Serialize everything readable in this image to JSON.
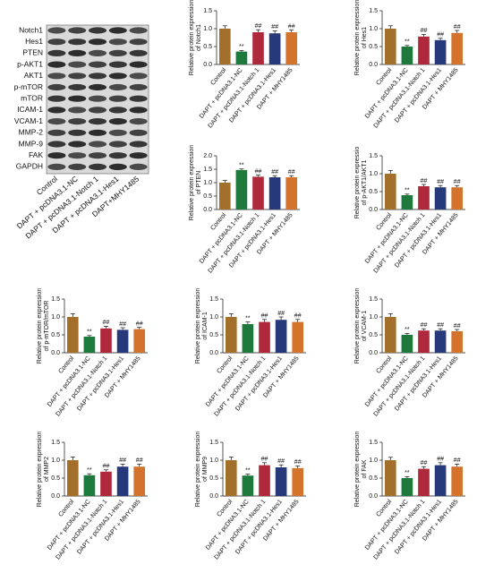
{
  "blot": {
    "proteins": [
      "Notch1",
      "Hes1",
      "PTEN",
      "p-AKT1",
      "AKT1",
      "p-mTOR",
      "mTOR",
      "ICAM-1",
      "VCAM-1",
      "MMP-2",
      "MMP-9",
      "FAK",
      "GAPDH"
    ],
    "lanes": [
      "Control",
      "DAPT + pcDNA3.1-NC",
      "DAPT + pcDNA3.1-Notch 1",
      "DAPT + pcDNA3.1-Hes1",
      "DAPT+MHY1485"
    ]
  },
  "chart_data": [
    {
      "type": "bar",
      "ylabel": [
        "Relative protein expression",
        "of Notch1"
      ],
      "categories": [
        "Control",
        "DAPT + pcDNA3.1-NC",
        "DAPT + pcDNA3.1-Notch 1",
        "DAPT + pcDNA3.1-Hes1",
        "DAPT + MHY1485"
      ],
      "values": [
        1.0,
        0.36,
        0.9,
        0.87,
        0.9
      ],
      "errors": [
        0.08,
        0.03,
        0.07,
        0.07,
        0.06
      ],
      "annotations": [
        null,
        "**",
        "##",
        "##",
        "##"
      ],
      "colors": [
        "#a3702c",
        "#1d7a3c",
        "#b0283c",
        "#27397a",
        "#d4732c"
      ],
      "ylim": [
        0,
        1.5
      ],
      "yticks": [
        {
          "value": 0,
          "label": "0.0"
        },
        {
          "value": 0.5,
          "label": "0.5"
        },
        {
          "value": 1,
          "label": "1.0"
        },
        {
          "value": 1.5,
          "label": "1.5"
        }
      ]
    },
    {
      "type": "bar",
      "ylabel": [
        "Relative protein expression",
        "of Hes1"
      ],
      "categories": [
        "Control",
        "DAPT + pcDNA3.1-NC",
        "DAPT + pcDNA3.1-Notch 1",
        "DAPT + pcDNA3.1-Hes1",
        "DAPT + MHY1485"
      ],
      "values": [
        1.0,
        0.5,
        0.78,
        0.68,
        0.88
      ],
      "errors": [
        0.08,
        0.03,
        0.06,
        0.05,
        0.07
      ],
      "annotations": [
        null,
        "**",
        "##",
        "##",
        "##"
      ],
      "colors": [
        "#a3702c",
        "#1d7a3c",
        "#b0283c",
        "#27397a",
        "#d4732c"
      ],
      "ylim": [
        0,
        1.5
      ],
      "yticks": [
        {
          "value": 0,
          "label": "0.0"
        },
        {
          "value": 0.5,
          "label": "0.5"
        },
        {
          "value": 1,
          "label": "1.0"
        },
        {
          "value": 1.5,
          "label": "1.5"
        }
      ]
    },
    {
      "type": "bar",
      "ylabel": [
        "Relative protein expression",
        "of PTEN"
      ],
      "categories": [
        "Control",
        "DAPT + pcDNA3.1-NC",
        "DAPT + pcDNA3.1-Notch 1",
        "DAPT + pcDNA3.1-Hes1",
        "DAPT + MHY1485"
      ],
      "values": [
        1.0,
        1.47,
        1.22,
        1.2,
        1.2
      ],
      "errors": [
        0.08,
        0.04,
        0.06,
        0.06,
        0.06
      ],
      "annotations": [
        null,
        "**",
        "##",
        "##",
        "##"
      ],
      "colors": [
        "#a3702c",
        "#1d7a3c",
        "#b0283c",
        "#27397a",
        "#d4732c"
      ],
      "ylim": [
        0,
        2
      ],
      "yticks": [
        {
          "value": 0,
          "label": "0.0"
        },
        {
          "value": 0.5,
          "label": "0.5"
        },
        {
          "value": 1,
          "label": "1.0"
        },
        {
          "value": 1.5,
          "label": "1.5"
        },
        {
          "value": 2,
          "label": "2.0"
        }
      ]
    },
    {
      "type": "bar",
      "ylabel": [
        "Relative protein expressio",
        "of p-AKT1/AKT1"
      ],
      "categories": [
        "Control",
        "DAPT + pcDNA3.1-NC",
        "DAPT + pcDNA3.1-Notch 1",
        "DAPT + pcDNA3.1-Hes1",
        "DAPT + MHY1485"
      ],
      "values": [
        1.0,
        0.4,
        0.65,
        0.62,
        0.62
      ],
      "errors": [
        0.09,
        0.03,
        0.05,
        0.05,
        0.05
      ],
      "annotations": [
        null,
        "**",
        "##",
        "##",
        "##"
      ],
      "colors": [
        "#a3702c",
        "#1d7a3c",
        "#b0283c",
        "#27397a",
        "#d4732c"
      ],
      "ylim": [
        0,
        1.5
      ],
      "yticks": [
        {
          "value": 0,
          "label": "0.0"
        },
        {
          "value": 0.5,
          "label": "0.5"
        },
        {
          "value": 1,
          "label": "1.0"
        },
        {
          "value": 1.5,
          "label": "1.5"
        }
      ]
    },
    {
      "type": "bar",
      "ylabel": [
        "Relative protein expression",
        "of p-mTOR/mTOR"
      ],
      "categories": [
        "Control",
        "DAPT + pcDNA3.1-NC",
        "DAPT + pcDNA3.1-Notch 1",
        "DAPT + pcDNA3.1-Hes1",
        "DAPT + MHY1485"
      ],
      "values": [
        1.0,
        0.45,
        0.68,
        0.64,
        0.66
      ],
      "errors": [
        0.09,
        0.03,
        0.06,
        0.06,
        0.05
      ],
      "annotations": [
        null,
        "**",
        "##",
        "##",
        "##"
      ],
      "colors": [
        "#a3702c",
        "#1d7a3c",
        "#b0283c",
        "#27397a",
        "#d4732c"
      ],
      "ylim": [
        0,
        1.5
      ],
      "yticks": [
        {
          "value": 0,
          "label": "0.0"
        },
        {
          "value": 0.5,
          "label": "0.5"
        },
        {
          "value": 1,
          "label": "1.0"
        },
        {
          "value": 1.5,
          "label": "1.5"
        }
      ]
    },
    {
      "type": "bar",
      "ylabel": [
        "Relative protein expression",
        "of ICAM-1"
      ],
      "categories": [
        "Control",
        "DAPT + pcDNA3.1-NC",
        "DAPT + pcDNA3.1-Notch 1",
        "DAPT + pcDNA3.1-Hes1",
        "DAPT + MHY1485"
      ],
      "values": [
        1.0,
        0.8,
        0.86,
        0.92,
        0.86
      ],
      "errors": [
        0.09,
        0.06,
        0.07,
        0.08,
        0.07
      ],
      "annotations": [
        null,
        "**",
        "##",
        "##",
        "##"
      ],
      "colors": [
        "#a3702c",
        "#1d7a3c",
        "#b0283c",
        "#27397a",
        "#d4732c"
      ],
      "ylim": [
        0,
        1.5
      ],
      "yticks": [
        {
          "value": 0,
          "label": "0.0"
        },
        {
          "value": 0.5,
          "label": "0.5"
        },
        {
          "value": 1,
          "label": "1.0"
        },
        {
          "value": 1.5,
          "label": "1.5"
        }
      ]
    },
    {
      "type": "bar",
      "ylabel": [
        "Relative protein expression",
        "of VCAM-1"
      ],
      "categories": [
        "Control",
        "DAPT + pcDNA3.1-NC",
        "DAPT + pcDNA3.1-Notch 1",
        "DAPT + pcDNA3.1-Hes1",
        "DAPT + MHY1485"
      ],
      "values": [
        1.0,
        0.5,
        0.62,
        0.62,
        0.6
      ],
      "errors": [
        0.09,
        0.04,
        0.05,
        0.05,
        0.05
      ],
      "annotations": [
        null,
        "**",
        "##",
        "##",
        "##"
      ],
      "colors": [
        "#a3702c",
        "#1d7a3c",
        "#b0283c",
        "#27397a",
        "#d4732c"
      ],
      "ylim": [
        0,
        1.5
      ],
      "yticks": [
        {
          "value": 0,
          "label": "0.0"
        },
        {
          "value": 0.5,
          "label": "0.5"
        },
        {
          "value": 1,
          "label": "1.0"
        },
        {
          "value": 1.5,
          "label": "1.5"
        }
      ]
    },
    {
      "type": "bar",
      "ylabel": [
        "Relative protein expression",
        "of MMP2"
      ],
      "categories": [
        "Control",
        "DAPT + pcDNA3.1-NC",
        "DAPT + pcDNA3.1-Notch 1",
        "DAPT + pcDNA3.1-Hes1",
        "DAPT + MHY1485"
      ],
      "values": [
        1.0,
        0.58,
        0.68,
        0.82,
        0.82
      ],
      "errors": [
        0.09,
        0.04,
        0.05,
        0.07,
        0.07
      ],
      "annotations": [
        null,
        "**",
        "##",
        "##",
        "##"
      ],
      "colors": [
        "#a3702c",
        "#1d7a3c",
        "#b0283c",
        "#27397a",
        "#d4732c"
      ],
      "ylim": [
        0,
        1.5
      ],
      "yticks": [
        {
          "value": 0,
          "label": "0.0"
        },
        {
          "value": 0.5,
          "label": "0.5"
        },
        {
          "value": 1,
          "label": "1.0"
        },
        {
          "value": 1.5,
          "label": "1.5"
        }
      ]
    },
    {
      "type": "bar",
      "ylabel": [
        "Relative protein expression",
        "of MMP9"
      ],
      "categories": [
        "Control",
        "DAPT + pcDNA3.1-NC",
        "DAPT + pcDNA3.1-Notch 1",
        "DAPT + pcDNA3.1-Hes1",
        "DAPT + MHY1485"
      ],
      "values": [
        1.0,
        0.57,
        0.86,
        0.8,
        0.78
      ],
      "errors": [
        0.09,
        0.04,
        0.07,
        0.07,
        0.06
      ],
      "annotations": [
        null,
        "**",
        "##",
        "##",
        "##"
      ],
      "colors": [
        "#a3702c",
        "#1d7a3c",
        "#b0283c",
        "#27397a",
        "#d4732c"
      ],
      "ylim": [
        0,
        1.5
      ],
      "yticks": [
        {
          "value": 0,
          "label": "0.0"
        },
        {
          "value": 0.5,
          "label": "0.5"
        },
        {
          "value": 1,
          "label": "1.0"
        },
        {
          "value": 1.5,
          "label": "1.5"
        }
      ]
    },
    {
      "type": "bar",
      "ylabel": [
        "Relative protein expression",
        "of FAK"
      ],
      "categories": [
        "Control",
        "DAPT + pcDNA3.1-NC",
        "DAPT + pcDNA3.1-Notch 1",
        "DAPT + pcDNA3.1-Hes1",
        "DAPT + MHY1485"
      ],
      "values": [
        1.0,
        0.5,
        0.76,
        0.86,
        0.82
      ],
      "errors": [
        0.08,
        0.04,
        0.06,
        0.07,
        0.07
      ],
      "annotations": [
        null,
        "**",
        "##",
        "##",
        "##"
      ],
      "colors": [
        "#a3702c",
        "#1d7a3c",
        "#b0283c",
        "#27397a",
        "#d4732c"
      ],
      "ylim": [
        0,
        1.5
      ],
      "yticks": [
        {
          "value": 0,
          "label": "0.0"
        },
        {
          "value": 0.5,
          "label": "0.5"
        },
        {
          "value": 1,
          "label": "1.0"
        },
        {
          "value": 1.5,
          "label": "1.5"
        }
      ]
    }
  ]
}
